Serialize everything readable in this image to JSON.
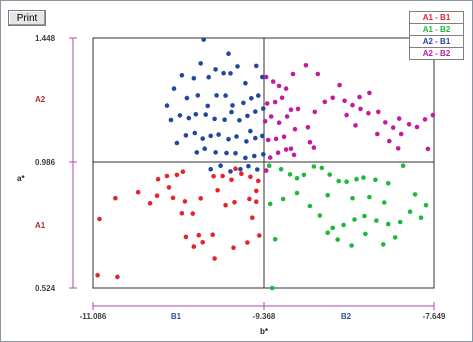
{
  "toolbar": {
    "print_label": "Print"
  },
  "chart_data": {
    "type": "scatter",
    "xlabel": "b*",
    "ylabel": "a*",
    "xlim": [
      -11.086,
      -7.649
    ],
    "ylim": [
      0.524,
      1.448
    ],
    "x_ticks": [
      "-11.086",
      "-9.368",
      "-7.649"
    ],
    "y_ticks": [
      "1.448",
      "0.986",
      "0.524"
    ],
    "x_region_labels": [
      "B1",
      "B2"
    ],
    "y_region_labels": [
      "A2",
      "A1"
    ],
    "center": {
      "x": -9.368,
      "y": 0.986
    },
    "grid": false,
    "legend_position": "top-right",
    "colors": {
      "A1-B1": "#e8222a",
      "A1-B2": "#1fb83a",
      "A2-B1": "#22479e",
      "A2-B2": "#c21aa0",
      "axis": "#b04ab0",
      "region_red": "#b03030",
      "region_blue": "#3050a0"
    },
    "series": [
      {
        "name": "A1 - B1",
        "color": "#e8222a",
        "points": [
          [
            -11.04,
            0.571
          ],
          [
            -10.84,
            0.565
          ],
          [
            -11.02,
            0.779
          ],
          [
            -10.86,
            0.856
          ],
          [
            -10.63,
            0.878
          ],
          [
            -10.51,
            0.837
          ],
          [
            -10.44,
            0.865
          ],
          [
            -10.32,
            0.896
          ],
          [
            -10.43,
            0.926
          ],
          [
            -10.34,
            0.938
          ],
          [
            -10.24,
            0.942
          ],
          [
            -10.18,
            0.954
          ],
          [
            -10.28,
            0.857
          ],
          [
            -10.16,
            0.844
          ],
          [
            -10.19,
            0.8
          ],
          [
            -10.08,
            0.799
          ],
          [
            -10.0,
            0.855
          ],
          [
            -9.83,
            0.885
          ],
          [
            -9.66,
            0.841
          ],
          [
            -9.51,
            0.853
          ],
          [
            -9.44,
            0.843
          ],
          [
            -9.87,
            0.937
          ],
          [
            -9.78,
            0.938
          ],
          [
            -9.69,
            0.924
          ],
          [
            -9.59,
            0.946
          ],
          [
            -9.5,
            0.935
          ],
          [
            -9.42,
            0.92
          ],
          [
            -9.44,
            0.883
          ],
          [
            -10.15,
            0.713
          ],
          [
            -10.02,
            0.719
          ],
          [
            -9.88,
            0.721
          ],
          [
            -9.98,
            0.693
          ],
          [
            -10.07,
            0.677
          ],
          [
            -9.86,
            0.633
          ],
          [
            -9.67,
            0.673
          ],
          [
            -9.53,
            0.692
          ],
          [
            -9.41,
            0.718
          ],
          [
            -9.48,
            0.784
          ],
          [
            -9.75,
            0.83
          ],
          [
            -9.65,
            0.965
          ]
        ]
      },
      {
        "name": "A1 - B2",
        "color": "#1fb83a",
        "points": [
          [
            -9.31,
            0.976
          ],
          [
            -9.19,
            0.963
          ],
          [
            -9.1,
            0.944
          ],
          [
            -9.03,
            0.93
          ],
          [
            -8.96,
            0.942
          ],
          [
            -8.86,
            0.973
          ],
          [
            -8.78,
            0.968
          ],
          [
            -8.7,
            0.943
          ],
          [
            -8.61,
            0.919
          ],
          [
            -8.53,
            0.917
          ],
          [
            -8.43,
            0.926
          ],
          [
            -8.36,
            0.932
          ],
          [
            -8.24,
            0.924
          ],
          [
            -8.11,
            0.911
          ],
          [
            -7.96,
            0.976
          ],
          [
            -7.84,
            0.87
          ],
          [
            -7.73,
            0.83
          ],
          [
            -7.78,
            0.784
          ],
          [
            -7.89,
            0.806
          ],
          [
            -7.99,
            0.768
          ],
          [
            -8.11,
            0.76
          ],
          [
            -8.23,
            0.773
          ],
          [
            -8.35,
            0.79
          ],
          [
            -8.45,
            0.777
          ],
          [
            -8.56,
            0.757
          ],
          [
            -8.67,
            0.746
          ],
          [
            -8.8,
            0.792
          ],
          [
            -8.9,
            0.827
          ],
          [
            -9.03,
            0.875
          ],
          [
            -9.17,
            0.853
          ],
          [
            -9.3,
            0.835
          ],
          [
            -9.25,
            0.704
          ],
          [
            -8.72,
            0.728
          ],
          [
            -8.62,
            0.703
          ],
          [
            -8.48,
            0.681
          ],
          [
            -8.34,
            0.724
          ],
          [
            -8.16,
            0.685
          ],
          [
            -8.04,
            0.711
          ],
          [
            -8.15,
            0.84
          ],
          [
            -8.3,
            0.86
          ],
          [
            -8.47,
            0.856
          ],
          [
            -8.72,
            0.867
          ],
          [
            -9.28,
            0.524
          ]
        ]
      },
      {
        "name": "A2 - B1",
        "color": "#22479e",
        "points": [
          [
            -10.27,
            1.261
          ],
          [
            -10.19,
            1.31
          ],
          [
            -10.07,
            1.299
          ],
          [
            -10.0,
            1.354
          ],
          [
            -9.92,
            1.303
          ],
          [
            -9.85,
            1.332
          ],
          [
            -9.77,
            1.318
          ],
          [
            -9.7,
            1.317
          ],
          [
            -9.63,
            1.343
          ],
          [
            -9.55,
            1.281
          ],
          [
            -9.44,
            1.345
          ],
          [
            -9.38,
            1.304
          ],
          [
            -9.97,
            1.442
          ],
          [
            -10.14,
            1.226
          ],
          [
            -10.03,
            1.236
          ],
          [
            -9.93,
            1.197
          ],
          [
            -9.84,
            1.236
          ],
          [
            -9.75,
            1.235
          ],
          [
            -9.68,
            1.199
          ],
          [
            -9.57,
            1.208
          ],
          [
            -9.49,
            1.225
          ],
          [
            -9.42,
            1.235
          ],
          [
            -10.21,
            1.162
          ],
          [
            -10.12,
            1.152
          ],
          [
            -10.05,
            1.166
          ],
          [
            -9.95,
            1.165
          ],
          [
            -9.86,
            1.149
          ],
          [
            -9.76,
            1.146
          ],
          [
            -9.69,
            1.174
          ],
          [
            -9.61,
            1.144
          ],
          [
            -9.53,
            1.16
          ],
          [
            -9.45,
            1.176
          ],
          [
            -9.37,
            1.187
          ],
          [
            -10.15,
            1.088
          ],
          [
            -10.06,
            1.097
          ],
          [
            -9.98,
            1.076
          ],
          [
            -9.9,
            1.086
          ],
          [
            -9.82,
            1.091
          ],
          [
            -9.72,
            1.074
          ],
          [
            -9.64,
            1.084
          ],
          [
            -9.54,
            1.066
          ],
          [
            -9.45,
            1.078
          ],
          [
            -9.38,
            1.086
          ],
          [
            -10.04,
            1.025
          ],
          [
            -9.96,
            1.039
          ],
          [
            -9.85,
            1.025
          ],
          [
            -9.74,
            1.023
          ],
          [
            -9.65,
            1.022
          ],
          [
            -9.55,
            1.005
          ],
          [
            -9.46,
            1.012
          ],
          [
            -9.37,
            1.018
          ],
          [
            -9.9,
            0.963
          ],
          [
            -9.8,
            0.976
          ],
          [
            -9.7,
            0.955
          ],
          [
            -9.6,
            0.963
          ],
          [
            -9.52,
            0.974
          ],
          [
            -9.43,
            0.962
          ],
          [
            -10.34,
            1.198
          ],
          [
            -10.3,
            1.145
          ],
          [
            -10.24,
            1.06
          ],
          [
            -9.72,
            1.39
          ],
          [
            -9.5,
            1.104
          ]
        ]
      },
      {
        "name": "A2 - B2",
        "color": "#c21aa0",
        "points": [
          [
            -9.34,
            1.304
          ],
          [
            -9.27,
            1.287
          ],
          [
            -9.21,
            1.271
          ],
          [
            -9.14,
            1.261
          ],
          [
            -9.07,
            1.315
          ],
          [
            -8.94,
            1.347
          ],
          [
            -8.82,
            1.315
          ],
          [
            -9.33,
            1.206
          ],
          [
            -9.25,
            1.211
          ],
          [
            -9.18,
            1.227
          ],
          [
            -9.09,
            1.183
          ],
          [
            -9.02,
            1.186
          ],
          [
            -9.35,
            1.14
          ],
          [
            -9.29,
            1.158
          ],
          [
            -9.21,
            1.135
          ],
          [
            -9.13,
            1.158
          ],
          [
            -9.05,
            1.111
          ],
          [
            -9.32,
            1.071
          ],
          [
            -9.24,
            1.075
          ],
          [
            -9.16,
            1.083
          ],
          [
            -9.09,
            1.039
          ],
          [
            -9.3,
            1.006
          ],
          [
            -9.22,
            1.024
          ],
          [
            -9.14,
            1.036
          ],
          [
            -9.06,
            1.016
          ],
          [
            -9.34,
            0.958
          ],
          [
            -8.75,
            1.212
          ],
          [
            -8.67,
            1.227
          ],
          [
            -8.6,
            1.274
          ],
          [
            -8.55,
            1.216
          ],
          [
            -8.47,
            1.2
          ],
          [
            -8.39,
            1.186
          ],
          [
            -8.31,
            1.17
          ],
          [
            -8.3,
            1.245
          ],
          [
            -8.21,
            1.175
          ],
          [
            -8.14,
            1.136
          ],
          [
            -8.06,
            1.117
          ],
          [
            -7.98,
            1.093
          ],
          [
            -7.9,
            1.129
          ],
          [
            -7.82,
            1.119
          ],
          [
            -7.74,
            1.147
          ],
          [
            -8.53,
            1.163
          ],
          [
            -8.44,
            1.125
          ],
          [
            -8.22,
            1.093
          ],
          [
            -8.1,
            1.067
          ],
          [
            -8.01,
            1.04
          ],
          [
            -8.92,
            1.118
          ],
          [
            -8.86,
            1.043
          ],
          [
            -7.71,
            1.038
          ],
          [
            -8.9,
            1.063
          ],
          [
            -8.4,
            1.23
          ],
          [
            -8.0,
            1.15
          ],
          [
            -8.85,
            1.175
          ],
          [
            -7.66,
            1.163
          ]
        ]
      }
    ]
  }
}
